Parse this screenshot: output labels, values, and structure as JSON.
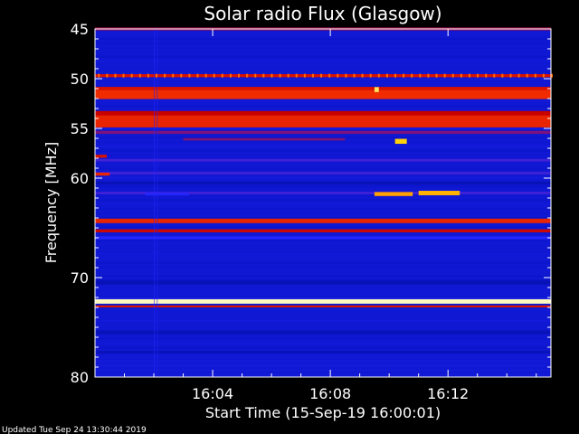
{
  "chart_data": {
    "type": "heatmap",
    "title": "Solar radio Flux (Glasgow)",
    "xlabel": "Start Time (15-Sep-19 16:00:01)",
    "ylabel": "Frequency [MHz]",
    "x_unit": "minutes after 16:00:01",
    "xlim": [
      0,
      15.5
    ],
    "ylim": [
      45,
      80
    ],
    "y_inverted": true,
    "x_ticks": [
      {
        "value": 4,
        "label": "16:04"
      },
      {
        "value": 8,
        "label": "16:08"
      },
      {
        "value": 12,
        "label": "16:12"
      }
    ],
    "y_ticks": [
      {
        "value": 45,
        "label": "45"
      },
      {
        "value": 50,
        "label": "50"
      },
      {
        "value": 55,
        "label": "55"
      },
      {
        "value": 60,
        "label": "60"
      },
      {
        "value": 70,
        "label": "70"
      },
      {
        "value": 80,
        "label": "80"
      }
    ],
    "colormap": [
      "#000020",
      "#0a14c8",
      "#2828ff",
      "#c80000",
      "#ff3c00",
      "#ffd000",
      "#ffffe8"
    ],
    "background_level": 0.2,
    "bands": [
      {
        "freq": 45.0,
        "width": 0.3,
        "level": 0.45
      },
      {
        "freq": 49.7,
        "width": 0.3,
        "level": 0.55
      },
      {
        "freq": 51.0,
        "width": 0.35,
        "level": 0.55
      },
      {
        "freq": 51.6,
        "width": 0.9,
        "level": 0.62
      },
      {
        "freq": 53.5,
        "width": 0.5,
        "level": 0.5
      },
      {
        "freq": 54.3,
        "width": 1.2,
        "level": 0.6
      },
      {
        "freq": 55.4,
        "width": 0.3,
        "level": 0.42
      },
      {
        "freq": 58.2,
        "width": 0.25,
        "level": 0.36
      },
      {
        "freq": 59.5,
        "width": 0.25,
        "level": 0.36
      },
      {
        "freq": 60.5,
        "width": 0.3,
        "level": 0.15
      },
      {
        "freq": 61.5,
        "width": 0.25,
        "level": 0.36
      },
      {
        "freq": 64.3,
        "width": 0.45,
        "level": 0.6
      },
      {
        "freq": 65.3,
        "width": 0.3,
        "level": 0.52
      },
      {
        "freq": 66.0,
        "width": 0.3,
        "level": 0.32
      },
      {
        "freq": 70.5,
        "width": 0.4,
        "level": 0.15
      },
      {
        "freq": 72.4,
        "width": 0.45,
        "level": 0.97
      },
      {
        "freq": 72.9,
        "width": 0.2,
        "level": 0.55
      },
      {
        "freq": 75.5,
        "width": 0.35,
        "level": 0.15
      },
      {
        "freq": 77.5,
        "width": 0.25,
        "level": 0.15
      }
    ],
    "bursts": [
      {
        "t_start": 9.5,
        "t_end": 10.8,
        "freq": 61.6,
        "width": 0.4,
        "level": 0.78
      },
      {
        "t_start": 11.0,
        "t_end": 12.4,
        "freq": 61.5,
        "width": 0.45,
        "level": 0.8
      },
      {
        "t_start": 10.2,
        "t_end": 10.6,
        "freq": 56.3,
        "width": 0.5,
        "level": 0.84
      },
      {
        "t_start": 9.5,
        "t_end": 9.65,
        "freq": 51.1,
        "width": 0.5,
        "level": 0.9
      },
      {
        "t_start": 3.0,
        "t_end": 8.5,
        "freq": 56.1,
        "width": 0.25,
        "level": 0.42
      },
      {
        "t_start": 1.7,
        "t_end": 3.2,
        "freq": 61.6,
        "width": 0.3,
        "level": 0.32
      },
      {
        "t_start": 0.0,
        "t_end": 0.5,
        "freq": 59.6,
        "width": 0.3,
        "level": 0.6
      },
      {
        "t_start": 0.0,
        "t_end": 0.4,
        "freq": 57.8,
        "width": 0.3,
        "level": 0.55
      }
    ],
    "dotted_rows": [
      {
        "freq": 49.7,
        "period_min": 0.28,
        "level": 0.72
      }
    ],
    "vertical_streaks": [
      {
        "t": 2.0,
        "level": 0.32
      },
      {
        "t": 2.1,
        "level": 0.3
      }
    ]
  },
  "footer": {
    "updated": "Updated Tue Sep 24 13:30:44 2019"
  }
}
